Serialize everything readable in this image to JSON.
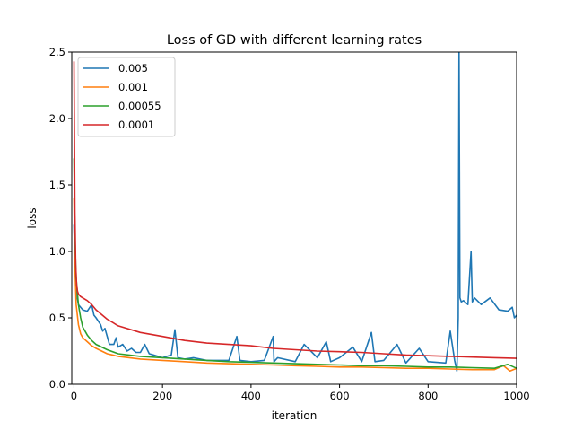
{
  "chart_data": {
    "type": "line",
    "title": "Loss of GD with different learning rates",
    "xlabel": "iteration",
    "ylabel": "loss",
    "xlim": [
      -5,
      1000
    ],
    "ylim": [
      0,
      2.5
    ],
    "xticks": [
      0,
      200,
      400,
      600,
      800,
      1000
    ],
    "xtick_labels": [
      "0",
      "200",
      "400",
      "600",
      "800",
      "1000"
    ],
    "yticks": [
      0,
      0.5,
      1.0,
      1.5,
      2.0,
      2.5
    ],
    "ytick_labels": [
      "0.0",
      "0.5",
      "1.0",
      "1.5",
      "2.0",
      "2.5"
    ],
    "grid": false,
    "legend_position": "top-left",
    "series": [
      {
        "name": "0.005",
        "color": "#1f77b4",
        "x": [
          0,
          2,
          5,
          10,
          20,
          30,
          40,
          45,
          50,
          60,
          65,
          70,
          80,
          90,
          95,
          100,
          110,
          120,
          130,
          140,
          150,
          160,
          170,
          180,
          200,
          220,
          228,
          235,
          250,
          270,
          300,
          330,
          350,
          368,
          375,
          400,
          430,
          450,
          452,
          460,
          500,
          520,
          550,
          570,
          580,
          600,
          630,
          650,
          672,
          680,
          700,
          730,
          750,
          780,
          800,
          840,
          850,
          860,
          865,
          868,
          870,
          872,
          875,
          880,
          890,
          897,
          900,
          905,
          920,
          940,
          960,
          980,
          990,
          995,
          1000
        ],
        "y": [
          1.2,
          0.9,
          0.7,
          0.6,
          0.56,
          0.55,
          0.6,
          0.52,
          0.5,
          0.45,
          0.4,
          0.42,
          0.3,
          0.3,
          0.35,
          0.28,
          0.3,
          0.25,
          0.27,
          0.24,
          0.24,
          0.3,
          0.23,
          0.22,
          0.2,
          0.22,
          0.41,
          0.2,
          0.19,
          0.2,
          0.18,
          0.18,
          0.18,
          0.36,
          0.18,
          0.17,
          0.18,
          0.36,
          0.17,
          0.2,
          0.17,
          0.3,
          0.2,
          0.32,
          0.17,
          0.2,
          0.28,
          0.17,
          0.39,
          0.17,
          0.18,
          0.3,
          0.16,
          0.27,
          0.17,
          0.16,
          0.4,
          0.18,
          0.1,
          0.5,
          2.5,
          0.65,
          0.62,
          0.63,
          0.6,
          1.0,
          0.62,
          0.65,
          0.6,
          0.65,
          0.56,
          0.55,
          0.58,
          0.5,
          0.52
        ]
      },
      {
        "name": "0.001",
        "color": "#ff7f0e",
        "x": [
          0,
          2,
          5,
          10,
          15,
          20,
          30,
          40,
          50,
          75,
          100,
          150,
          200,
          250,
          300,
          350,
          400,
          450,
          500,
          550,
          600,
          650,
          700,
          750,
          800,
          850,
          900,
          950,
          970,
          985,
          1000
        ],
        "y": [
          1.4,
          0.9,
          0.6,
          0.45,
          0.38,
          0.35,
          0.32,
          0.29,
          0.27,
          0.23,
          0.21,
          0.19,
          0.18,
          0.17,
          0.16,
          0.155,
          0.15,
          0.145,
          0.14,
          0.135,
          0.13,
          0.13,
          0.125,
          0.12,
          0.12,
          0.115,
          0.11,
          0.11,
          0.14,
          0.1,
          0.12
        ]
      },
      {
        "name": "0.00055",
        "color": "#2ca02c",
        "x": [
          0,
          2,
          5,
          10,
          15,
          20,
          30,
          40,
          50,
          75,
          100,
          150,
          200,
          250,
          300,
          350,
          400,
          450,
          500,
          550,
          600,
          650,
          700,
          750,
          800,
          850,
          900,
          950,
          980,
          1000
        ],
        "y": [
          1.7,
          1.1,
          0.8,
          0.6,
          0.5,
          0.43,
          0.37,
          0.33,
          0.3,
          0.26,
          0.23,
          0.21,
          0.2,
          0.19,
          0.18,
          0.17,
          0.165,
          0.16,
          0.155,
          0.15,
          0.145,
          0.14,
          0.14,
          0.135,
          0.13,
          0.13,
          0.125,
          0.12,
          0.15,
          0.12
        ]
      },
      {
        "name": "0.0001",
        "color": "#d62728",
        "x": [
          0,
          2,
          4,
          6,
          8,
          10,
          15,
          20,
          30,
          40,
          50,
          75,
          100,
          150,
          200,
          250,
          300,
          350,
          400,
          450,
          500,
          550,
          600,
          650,
          700,
          750,
          800,
          850,
          900,
          950,
          1000
        ],
        "y": [
          2.43,
          1.3,
          0.9,
          0.75,
          0.7,
          0.68,
          0.66,
          0.65,
          0.63,
          0.6,
          0.56,
          0.49,
          0.44,
          0.39,
          0.36,
          0.33,
          0.31,
          0.3,
          0.29,
          0.27,
          0.26,
          0.25,
          0.245,
          0.24,
          0.23,
          0.22,
          0.215,
          0.21,
          0.205,
          0.2,
          0.195
        ]
      }
    ]
  }
}
